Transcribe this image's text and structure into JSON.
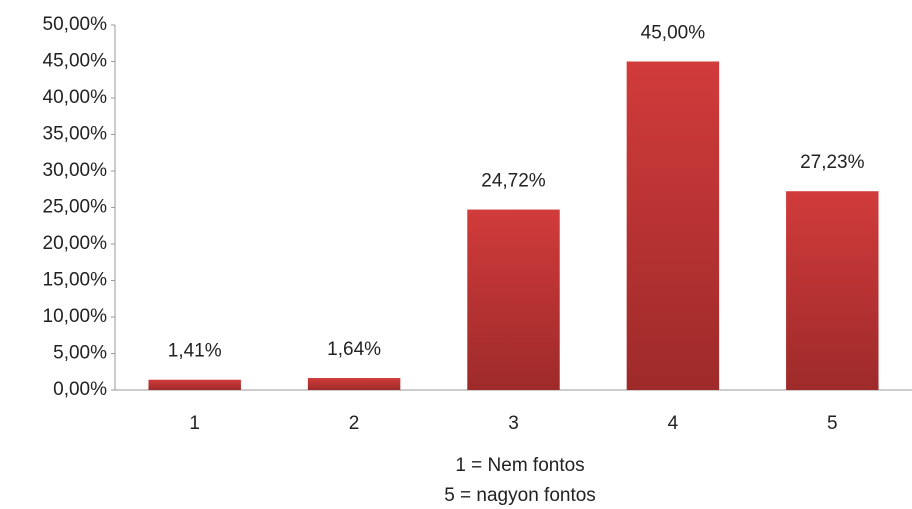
{
  "chart_data": {
    "type": "bar",
    "categories": [
      "1",
      "2",
      "3",
      "4",
      "5"
    ],
    "values": [
      1.41,
      1.64,
      24.72,
      45.0,
      27.23
    ],
    "value_labels": [
      "1,41%",
      "1,64%",
      "24,72%",
      "45,00%",
      "27,23%"
    ],
    "color": "#d13b3b",
    "ylim": [
      0,
      50
    ],
    "yticks": [
      {
        "value": 0,
        "label": "0,00%"
      },
      {
        "value": 5,
        "label": "5,00%"
      },
      {
        "value": 10,
        "label": "10,00%"
      },
      {
        "value": 15,
        "label": "15,00%"
      },
      {
        "value": 20,
        "label": "20,00%"
      },
      {
        "value": 25,
        "label": "25,00%"
      },
      {
        "value": 30,
        "label": "30,00%"
      },
      {
        "value": 35,
        "label": "35,00%"
      },
      {
        "value": 40,
        "label": "40,00%"
      },
      {
        "value": 45,
        "label": "45,00%"
      },
      {
        "value": 50,
        "label": "50,00%"
      }
    ],
    "grid": false,
    "x_label": [
      "1 = Nem fontos",
      "5 = nagyon fontos"
    ]
  }
}
